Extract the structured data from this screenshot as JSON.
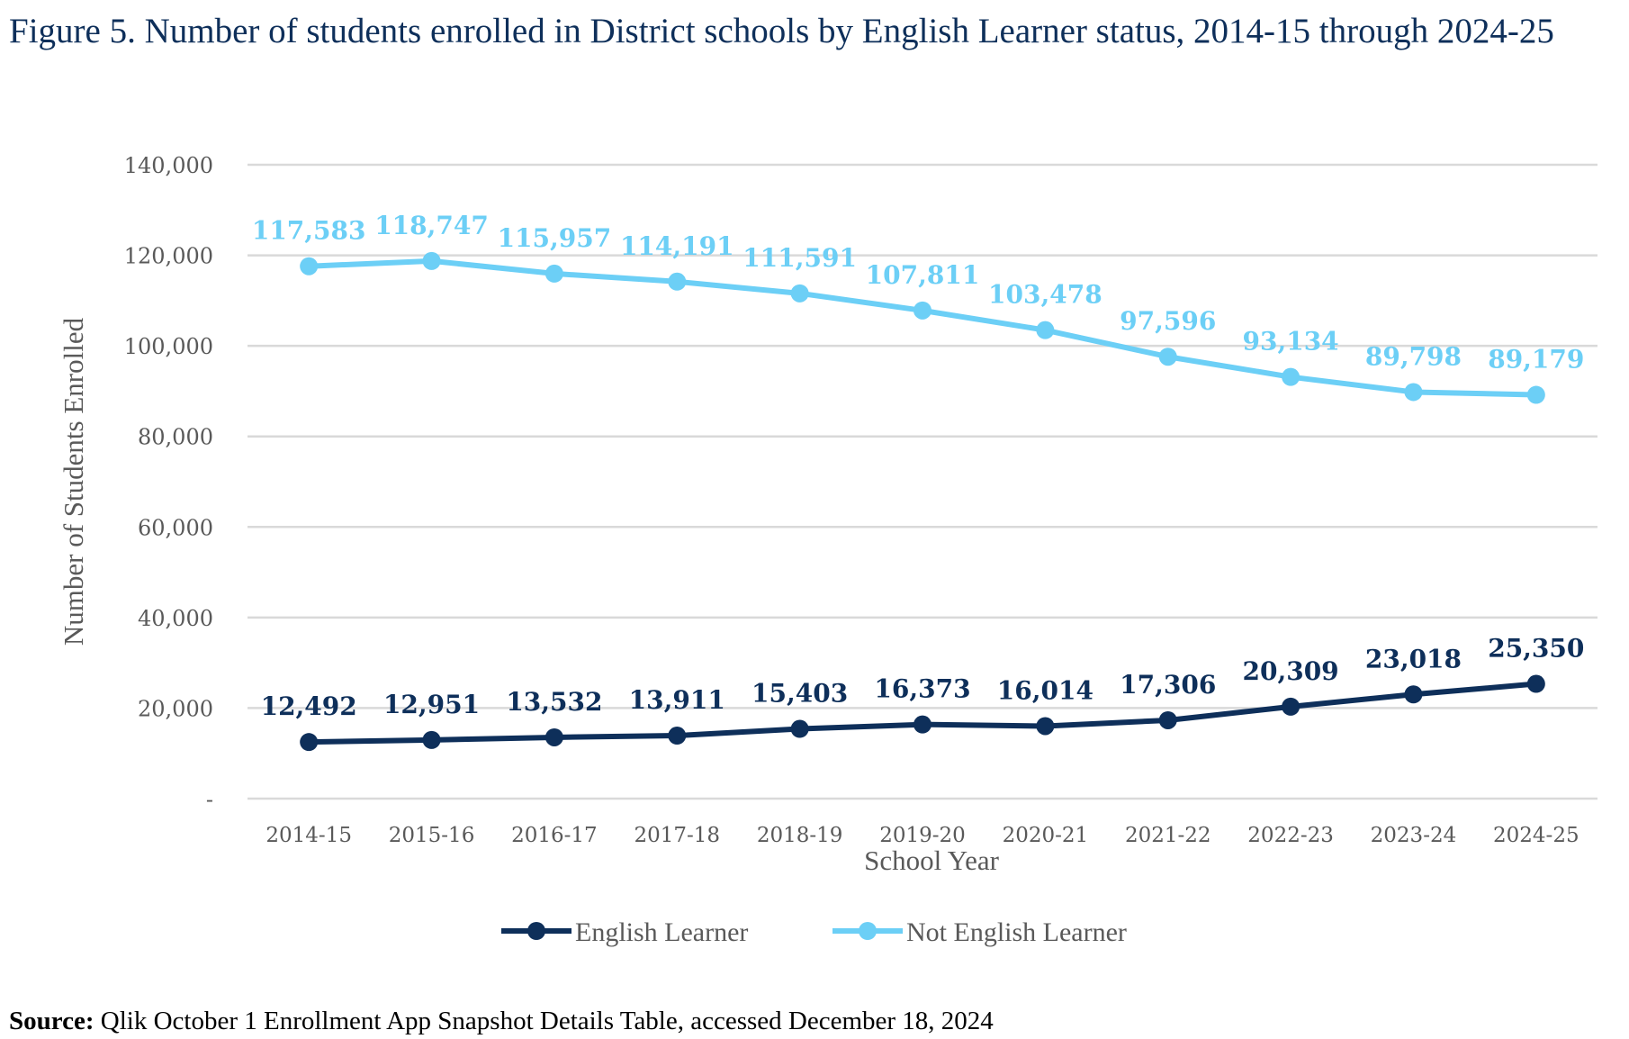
{
  "figure": {
    "title": "Figure 5. Number of students enrolled in District schools by English Learner status, 2014-15 through 2024-25",
    "source_label": "Source:",
    "source_text": " Qlik October 1 Enrollment App Snapshot Details Table, accessed December 18, 2024"
  },
  "chart_data": {
    "type": "line",
    "title": "Figure 5. Number of students enrolled in District schools by English Learner status, 2014-15 through 2024-25",
    "xlabel": "School Year",
    "ylabel": "Number of Students Enrolled",
    "categories": [
      "2014-15",
      "2015-16",
      "2016-17",
      "2017-18",
      "2018-19",
      "2019-20",
      "2020-21",
      "2021-22",
      "2022-23",
      "2023-24",
      "2024-25"
    ],
    "ylim": [
      0,
      140000
    ],
    "yticks": [
      0,
      20000,
      40000,
      60000,
      80000,
      100000,
      120000,
      140000
    ],
    "ytick_labels": [
      "-",
      "20,000",
      "40,000",
      "60,000",
      "80,000",
      "100,000",
      "120,000",
      "140,000"
    ],
    "grid": true,
    "legend_position": "bottom",
    "series": [
      {
        "name": "English Learner",
        "color": "#0E2F5A",
        "values": [
          12492,
          12951,
          13532,
          13911,
          15403,
          16373,
          16014,
          17306,
          20309,
          23018,
          25350
        ],
        "labels": [
          "12,492",
          "12,951",
          "13,532",
          "13,911",
          "15,403",
          "16,373",
          "16,014",
          "17,306",
          "20,309",
          "23,018",
          "25,350"
        ]
      },
      {
        "name": "Not English Learner",
        "color": "#6CCFF6",
        "values": [
          117583,
          118747,
          115957,
          114191,
          111591,
          107811,
          103478,
          97596,
          93134,
          89798,
          89179
        ],
        "labels": [
          "117,583",
          "118,747",
          "115,957",
          "114,191",
          "111,591",
          "107,811",
          "103,478",
          "97,596",
          "93,134",
          "89,798",
          "89,179"
        ]
      }
    ]
  }
}
